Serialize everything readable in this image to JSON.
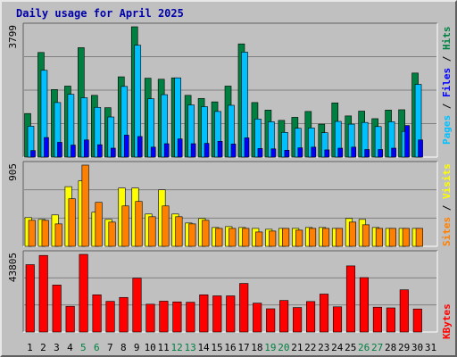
{
  "title": "Daily usage for April 2025",
  "colors": {
    "hits": "#008040",
    "files": "#00c0ff",
    "pages": "#0000ff",
    "visits": "#ffff00",
    "sites": "#ff8000",
    "kbytes": "#ff0000",
    "weekend": "#008040",
    "weekday": "#000000"
  },
  "chart_data": [
    {
      "type": "bar",
      "panel": "hits-files-pages",
      "categories": [
        "1",
        "2",
        "3",
        "4",
        "5",
        "6",
        "7",
        "8",
        "9",
        "10",
        "11",
        "12",
        "13",
        "14",
        "15",
        "16",
        "17",
        "18",
        "19",
        "20",
        "21",
        "22",
        "23",
        "24",
        "25",
        "26",
        "27",
        "28",
        "29",
        "30",
        "31"
      ],
      "weekend_days": [
        "5",
        "6",
        "12",
        "13",
        "19",
        "20",
        "26",
        "27"
      ],
      "y_tick_label": "3799",
      "ymax": 3799,
      "series": [
        {
          "name": "Hits",
          "values": [
            1270,
            3050,
            1970,
            2070,
            3190,
            1800,
            1440,
            2340,
            3799,
            2300,
            2270,
            2310,
            1800,
            1710,
            1610,
            2070,
            3300,
            1590,
            1370,
            1070,
            1160,
            1330,
            960,
            1580,
            1200,
            1340,
            1120,
            1370,
            1380,
            2450,
            0
          ]
        },
        {
          "name": "Files",
          "values": [
            900,
            2530,
            1590,
            1830,
            1730,
            1450,
            1170,
            2060,
            3260,
            1700,
            1820,
            2310,
            1520,
            1470,
            1330,
            1510,
            3060,
            1110,
            1030,
            720,
            840,
            850,
            710,
            1040,
            960,
            1010,
            890,
            1030,
            750,
            2120,
            0
          ]
        },
        {
          "name": "Pages",
          "values": [
            190,
            570,
            430,
            350,
            500,
            360,
            260,
            640,
            600,
            290,
            390,
            530,
            390,
            400,
            460,
            380,
            560,
            250,
            240,
            200,
            270,
            290,
            210,
            260,
            290,
            220,
            220,
            260,
            920,
            500,
            0
          ]
        }
      ],
      "legend": [
        "Pages",
        "Files",
        "Hits"
      ]
    },
    {
      "type": "bar",
      "panel": "visits-sites",
      "categories": [
        "1",
        "2",
        "3",
        "4",
        "5",
        "6",
        "7",
        "8",
        "9",
        "10",
        "11",
        "12",
        "13",
        "14",
        "15",
        "16",
        "17",
        "18",
        "19",
        "20",
        "21",
        "22",
        "23",
        "24",
        "25",
        "26",
        "27",
        "28",
        "29",
        "30",
        "31"
      ],
      "y_tick_label": "905",
      "ymax": 905,
      "series": [
        {
          "name": "Visits",
          "values": [
            320,
            300,
            350,
            665,
            730,
            380,
            300,
            650,
            650,
            360,
            630,
            360,
            260,
            310,
            210,
            220,
            210,
            200,
            190,
            200,
            200,
            210,
            210,
            200,
            310,
            300,
            210,
            200,
            200,
            200,
            0
          ]
        },
        {
          "name": "Sites",
          "values": [
            290,
            290,
            250,
            530,
            905,
            490,
            270,
            450,
            500,
            330,
            450,
            330,
            250,
            290,
            200,
            200,
            200,
            160,
            170,
            200,
            180,
            200,
            200,
            200,
            270,
            240,
            200,
            200,
            200,
            200,
            0
          ]
        }
      ],
      "legend": [
        "Sites",
        "Visits"
      ]
    },
    {
      "type": "bar",
      "panel": "kbytes",
      "categories": [
        "1",
        "2",
        "3",
        "4",
        "5",
        "6",
        "7",
        "8",
        "9",
        "10",
        "11",
        "12",
        "13",
        "14",
        "15",
        "16",
        "17",
        "18",
        "19",
        "20",
        "21",
        "22",
        "23",
        "24",
        "25",
        "26",
        "27",
        "28",
        "29",
        "30",
        "31"
      ],
      "y_tick_label": "43805",
      "ymax": 43805,
      "series": [
        {
          "name": "KBytes",
          "values": [
            38000,
            43200,
            26500,
            14500,
            43805,
            21000,
            17300,
            19500,
            30400,
            15700,
            17400,
            17000,
            16800,
            21000,
            20400,
            20400,
            27400,
            16300,
            13100,
            17800,
            13800,
            17200,
            21400,
            14200,
            37300,
            30700,
            14000,
            13600,
            23800,
            13000,
            0
          ]
        }
      ],
      "legend": [
        "KBytes"
      ]
    }
  ]
}
